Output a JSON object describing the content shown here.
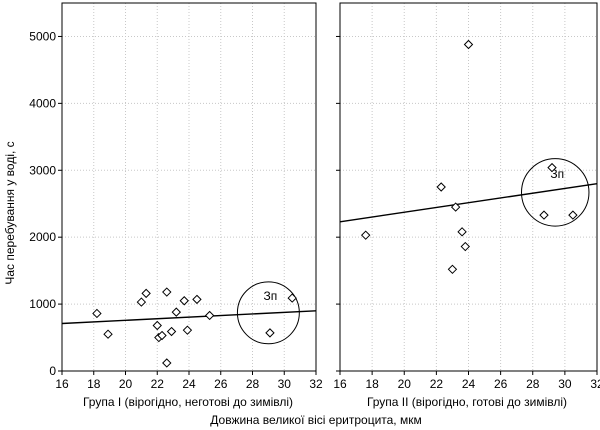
{
  "chart_data": {
    "type": "scatter",
    "ylabel": "Час перебування у воді, с",
    "xlabel": "Довжина великої вісі еритроцита, мкм",
    "ylim": [
      0,
      5500
    ],
    "yticks": [
      0,
      1000,
      2000,
      3000,
      4000,
      5000
    ],
    "grid": true,
    "panels": [
      {
        "subtitle": "Група I (вірогідно, неготові до зимівлі)",
        "xlim": [
          16,
          32
        ],
        "xticks": [
          16,
          18,
          20,
          22,
          24,
          26,
          28,
          30,
          32
        ],
        "points": [
          {
            "x": 18.2,
            "y": 860
          },
          {
            "x": 18.9,
            "y": 550
          },
          {
            "x": 21.0,
            "y": 1030
          },
          {
            "x": 21.3,
            "y": 1160
          },
          {
            "x": 22.0,
            "y": 680
          },
          {
            "x": 22.1,
            "y": 500
          },
          {
            "x": 22.3,
            "y": 530
          },
          {
            "x": 22.6,
            "y": 1180
          },
          {
            "x": 22.6,
            "y": 120
          },
          {
            "x": 22.9,
            "y": 590
          },
          {
            "x": 23.2,
            "y": 880
          },
          {
            "x": 23.7,
            "y": 1050
          },
          {
            "x": 23.9,
            "y": 610
          },
          {
            "x": 24.5,
            "y": 1070
          },
          {
            "x": 25.3,
            "y": 830
          },
          {
            "x": 29.1,
            "y": 570
          },
          {
            "x": 30.5,
            "y": 1090
          }
        ],
        "trendline": {
          "x": [
            16,
            32
          ],
          "y": [
            710,
            900
          ]
        },
        "annotation": {
          "label": "Зп",
          "cx": 29.0,
          "cy": 870,
          "r_x": 1.95
        }
      },
      {
        "subtitle": "Група II  (вірогідно, готові до зимівлі)",
        "xlim": [
          16,
          32
        ],
        "xticks": [
          16,
          18,
          20,
          22,
          24,
          26,
          28,
          30,
          32
        ],
        "points": [
          {
            "x": 17.6,
            "y": 2030
          },
          {
            "x": 22.3,
            "y": 2750
          },
          {
            "x": 23.0,
            "y": 1520
          },
          {
            "x": 23.2,
            "y": 2450
          },
          {
            "x": 23.6,
            "y": 2080
          },
          {
            "x": 23.8,
            "y": 1860
          },
          {
            "x": 24.0,
            "y": 4880
          },
          {
            "x": 28.7,
            "y": 2330
          },
          {
            "x": 29.2,
            "y": 3040
          },
          {
            "x": 30.5,
            "y": 2330
          }
        ],
        "trendline": {
          "x": [
            16,
            32
          ],
          "y": [
            2230,
            2800
          ]
        },
        "annotation": {
          "label": "Зп",
          "cx": 29.4,
          "cy": 2670,
          "r_x": 2.1
        }
      }
    ]
  }
}
